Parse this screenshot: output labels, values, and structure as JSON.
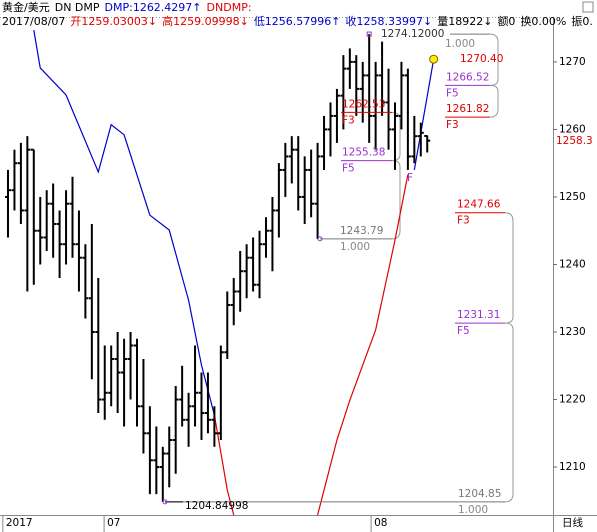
{
  "chart_data": {
    "type": "ohlc",
    "header": [
      [
        {
          "text": "黄金/美元",
          "color": "#000000"
        },
        {
          "text": "DN DMP",
          "color": "#000000"
        },
        {
          "text": "DMP:1262.4297↑",
          "color": "#0000cc"
        },
        {
          "text": "DNDMP:",
          "color": "#e00000"
        }
      ],
      [
        {
          "text": "2017/08/07",
          "color": "#000000"
        },
        {
          "text": "开1259.03003↓",
          "color": "#e00000"
        },
        {
          "text": "高1259.09998↓",
          "color": "#e00000"
        },
        {
          "text": "低1256.57996↑",
          "color": "#0000cc"
        },
        {
          "text": "收1258.33997↓",
          "color": "#0000cc"
        },
        {
          "text": "量18922↓",
          "color": "#000000"
        },
        {
          "text": "额0",
          "color": "#000000"
        },
        {
          "text": "换0.00%",
          "color": "#000000"
        },
        {
          "text": "振0.",
          "color": "#000000"
        }
      ]
    ],
    "period": "日线",
    "bar_color": "#000000",
    "xlim": [
      -1.24,
      84.5
    ],
    "xticks": [
      {
        "value": -0.8,
        "label": "2017"
      },
      {
        "value": 14.9,
        "label": "07"
      },
      {
        "value": 56.3,
        "label": "08"
      }
    ],
    "ylim": [
      1202.9,
      1276.5
    ],
    "yticks": [
      1210,
      1220,
      1230,
      1240,
      1250,
      1260,
      1270
    ],
    "current_price": 1258.3,
    "ohlc": [
      [
        1250,
        1254,
        1244,
        1251
      ],
      [
        1251,
        1257,
        1248,
        1255
      ],
      [
        1255,
        1258,
        1246,
        1248
      ],
      [
        1248,
        1259,
        1236,
        1257
      ],
      [
        1257,
        1257,
        1237,
        1245
      ],
      [
        1245,
        1250,
        1240,
        1244
      ],
      [
        1244,
        1251,
        1242,
        1249
      ],
      [
        1249,
        1252,
        1241,
        1246
      ],
      [
        1246,
        1248,
        1238,
        1243
      ],
      [
        1243,
        1251,
        1240,
        1249
      ],
      [
        1249,
        1253,
        1241,
        1243
      ],
      [
        1243,
        1248,
        1236,
        1241
      ],
      [
        1241,
        1243,
        1232,
        1235
      ],
      [
        1235,
        1246,
        1223,
        1230
      ],
      [
        1230,
        1238,
        1218,
        1220
      ],
      [
        1220,
        1228,
        1217,
        1221
      ],
      [
        1221,
        1228,
        1219,
        1226
      ],
      [
        1226,
        1230,
        1218,
        1224
      ],
      [
        1224,
        1229,
        1216,
        1226
      ],
      [
        1226,
        1230,
        1220,
        1228
      ],
      [
        1228,
        1229,
        1216,
        1219
      ],
      [
        1219,
        1226,
        1212,
        1215
      ],
      [
        1215,
        1219,
        1206,
        1211
      ],
      [
        1211,
        1216,
        1206,
        1210
      ],
      [
        1210,
        1213,
        1204.85,
        1212
      ],
      [
        1212,
        1216,
        1207,
        1214
      ],
      [
        1214,
        1222,
        1209,
        1220
      ],
      [
        1220,
        1225,
        1216,
        1217
      ],
      [
        1217,
        1221,
        1213,
        1219
      ],
      [
        1219,
        1228,
        1216,
        1221
      ],
      [
        1221,
        1224,
        1214,
        1218
      ],
      [
        1218,
        1224,
        1215,
        1217
      ],
      [
        1217,
        1219,
        1213,
        1215
      ],
      [
        1215,
        1228,
        1214,
        1227
      ],
      [
        1227,
        1236,
        1226,
        1234
      ],
      [
        1234,
        1238,
        1231,
        1236
      ],
      [
        1236,
        1242,
        1233,
        1239
      ],
      [
        1239,
        1243,
        1235,
        1241
      ],
      [
        1241,
        1244,
        1236,
        1237
      ],
      [
        1237,
        1245,
        1235,
        1243
      ],
      [
        1243,
        1247,
        1241,
        1245
      ],
      [
        1245,
        1250,
        1239,
        1248
      ],
      [
        1248,
        1255,
        1244,
        1254
      ],
      [
        1254,
        1258,
        1250,
        1256
      ],
      [
        1256,
        1259,
        1252,
        1257
      ],
      [
        1257,
        1259,
        1248,
        1250
      ],
      [
        1250,
        1256,
        1246,
        1254
      ],
      [
        1254,
        1257,
        1247,
        1249
      ],
      [
        1249,
        1258,
        1243.79,
        1256
      ],
      [
        1256,
        1262,
        1254,
        1260
      ],
      [
        1260,
        1264,
        1256,
        1262
      ],
      [
        1262,
        1266,
        1258,
        1265
      ],
      [
        1265,
        1271,
        1260,
        1269
      ],
      [
        1269,
        1272,
        1266,
        1270
      ],
      [
        1270,
        1271,
        1262,
        1266
      ],
      [
        1266,
        1270,
        1261,
        1268
      ],
      [
        1268,
        1274.12,
        1258,
        1262
      ],
      [
        1262,
        1270,
        1257,
        1268
      ],
      [
        1268,
        1273,
        1262,
        1264
      ],
      [
        1264,
        1269,
        1257,
        1260
      ],
      [
        1260,
        1264,
        1254,
        1262
      ],
      [
        1262,
        1270,
        1260,
        1268
      ],
      [
        1268,
        1269,
        1254,
        1256
      ],
      [
        1256,
        1262,
        1255,
        1259
      ],
      [
        1259,
        1261,
        1256,
        1259.5
      ],
      [
        1259.03,
        1259.1,
        1256.58,
        1258.34
      ]
    ],
    "series": [
      {
        "name": "DMP",
        "color": "#0000cc",
        "x": [
          4,
          5,
          9,
          14,
          16,
          18,
          22,
          25,
          28,
          30,
          32,
          null,
          63,
          66
        ],
        "values": [
          1274.7,
          1269.1,
          1265.1,
          1253.7,
          1260.7,
          1259.2,
          1247.3,
          1245.1,
          1234.7,
          1225.1,
          1217.7,
          null,
          1254.0,
          1270.4
        ]
      },
      {
        "name": "DNDMP",
        "color": "#e00000",
        "x": [
          32,
          34,
          35,
          null,
          48,
          51,
          53,
          57,
          60,
          62
        ],
        "values": [
          1217.7,
          1206.6,
          1202.9,
          null,
          1202.9,
          1214.0,
          1219.9,
          1230.3,
          1243.6,
          1253.3
        ]
      }
    ],
    "levels": [
      {
        "value": 1274.12,
        "label": "1274.12000",
        "ratio": "1.000",
        "color": "#333333"
      },
      {
        "value": 1270.4,
        "label": "1270.40",
        "color": "#e00000"
      },
      {
        "value": 1266.52,
        "label": "1266.52",
        "tag": "F5",
        "color": "#9933cc"
      },
      {
        "value": 1262.53,
        "label": "1262.53",
        "tag": "F3",
        "color": "#e00000"
      },
      {
        "value": 1261.82,
        "label": "1261.82",
        "tag": "F3",
        "color": "#e00000"
      },
      {
        "value": 1255.38,
        "label": "1255.38",
        "tag": "F5",
        "color": "#9933cc"
      },
      {
        "value": 1243.79,
        "label": "1243.79",
        "ratio": "1.000",
        "color": "#777777"
      },
      {
        "value": 1247.66,
        "label": "1247.66",
        "tag": "F3",
        "color": "#e00000"
      },
      {
        "value": 1231.31,
        "label": "1231.31",
        "tag": "F5",
        "color": "#9933cc"
      },
      {
        "value": 1204.85,
        "label": "1204.85",
        "ratio": "1.000",
        "color": "#777777"
      },
      {
        "value": 1204.84998,
        "label": "1204.84998",
        "color": "#000000"
      }
    ],
    "point_label": "F"
  }
}
